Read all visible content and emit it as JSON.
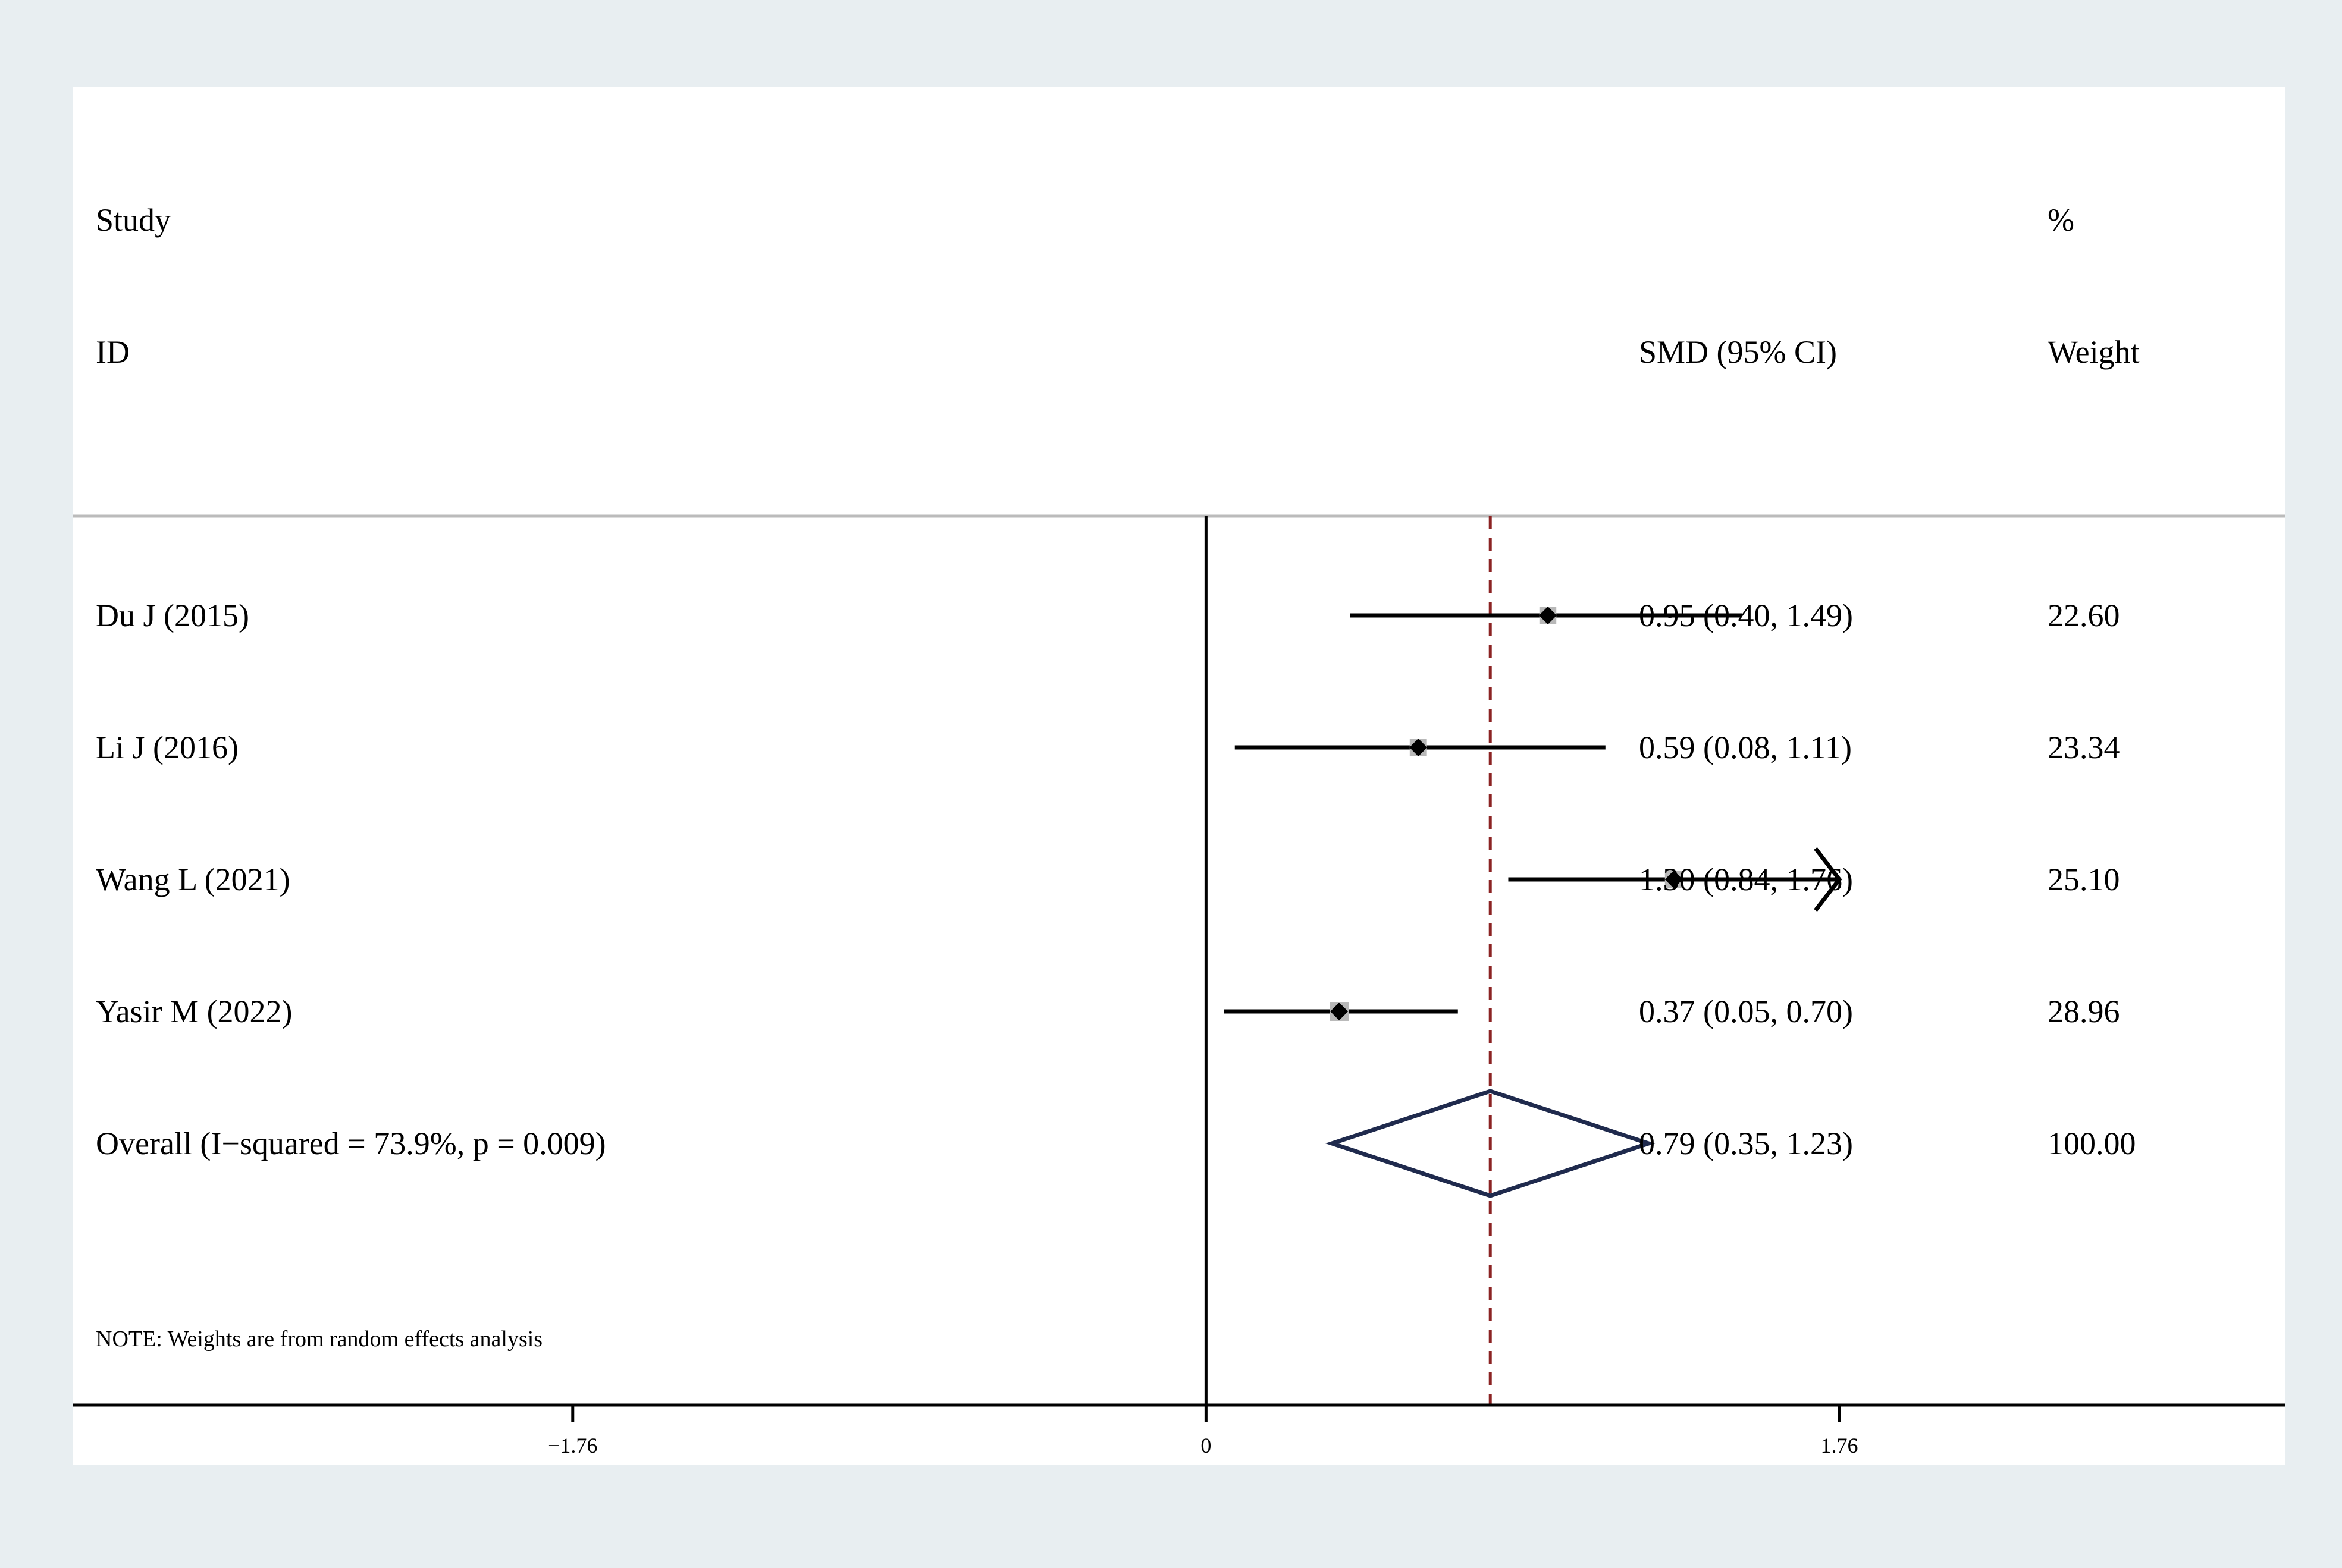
{
  "chart_data": {
    "type": "forest",
    "header": {
      "study_line1": "Study",
      "study_line2": "ID",
      "effect_label": "SMD (95% CI)",
      "weight_line1": "%",
      "weight_line2": "Weight"
    },
    "studies": [
      {
        "label": "Du J (2015)",
        "smd": 0.95,
        "lower": 0.4,
        "upper": 1.49,
        "ci_text": "0.95 (0.40, 1.49)",
        "weight_text": "22.60",
        "weight": 22.6
      },
      {
        "label": "Li J (2016)",
        "smd": 0.59,
        "lower": 0.08,
        "upper": 1.11,
        "ci_text": "0.59 (0.08, 1.11)",
        "weight_text": "23.34",
        "weight": 23.34
      },
      {
        "label": "Wang L (2021)",
        "smd": 1.3,
        "lower": 0.84,
        "upper": 1.76,
        "ci_text": "1.30 (0.84, 1.76)",
        "weight_text": "25.10",
        "weight": 25.1,
        "clipped_upper": true
      },
      {
        "label": "Yasir M (2022)",
        "smd": 0.37,
        "lower": 0.05,
        "upper": 0.7,
        "ci_text": "0.37 (0.05, 0.70)",
        "weight_text": "28.96",
        "weight": 28.96
      }
    ],
    "overall": {
      "label": "Overall  (I−squared = 73.9%, p = 0.009)",
      "smd": 0.79,
      "lower": 0.35,
      "upper": 1.23,
      "ci_text": "0.79 (0.35, 1.23)",
      "weight_text": "100.00"
    },
    "note": "NOTE: Weights are from random effects analysis",
    "x_ticks": [
      {
        "value": -1.76,
        "label": "−1.76"
      },
      {
        "value": 0,
        "label": "0"
      },
      {
        "value": 1.76,
        "label": "1.76"
      }
    ],
    "xlim": [
      -3.15,
      3.0
    ],
    "null_line": 0,
    "colors": {
      "background": "#e8eef1",
      "plot_bg": "#ffffff",
      "ci_line": "#000000",
      "box": "#b8b8b8",
      "point": "#000000",
      "diamond": "#1f2a4d",
      "overall_line": "#8b2323",
      "separator": "#bbbbbb"
    }
  }
}
